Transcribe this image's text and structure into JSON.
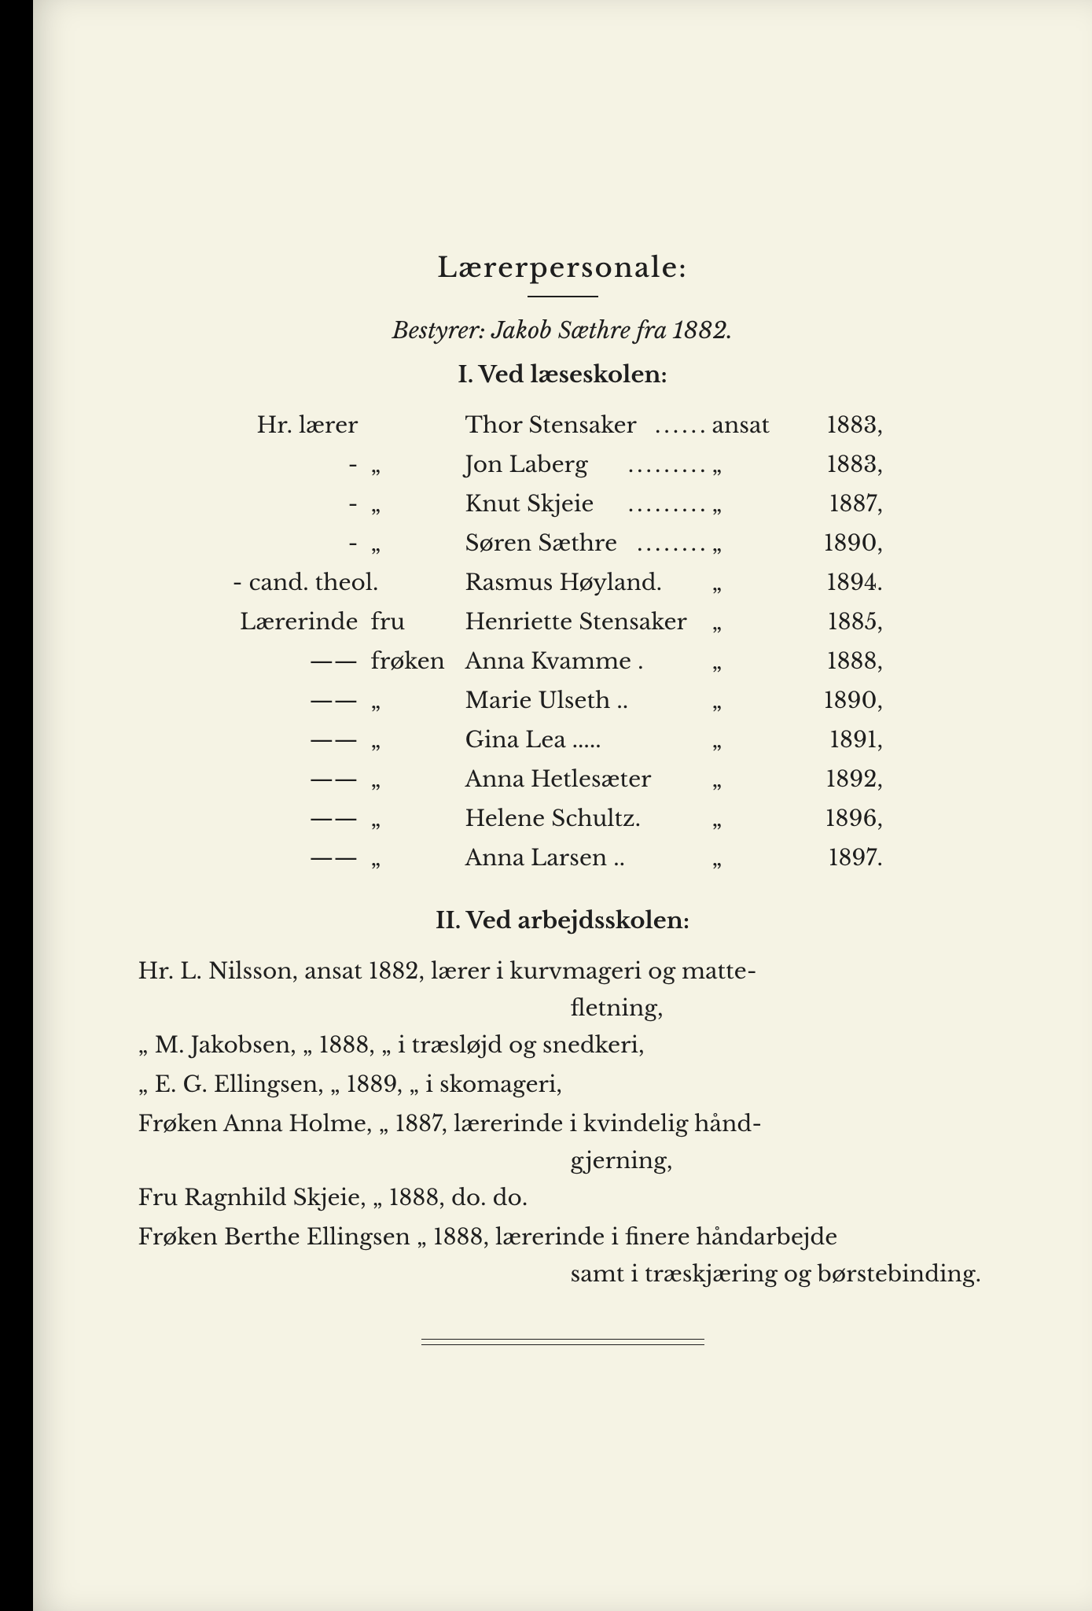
{
  "title": "Lærerpersonale:",
  "bestyrer": "Bestyrer: Jakob Sæthre fra 1882.",
  "section1": {
    "heading": "I.  Ved læseskolen:",
    "rows": [
      {
        "title": "Hr. lærer",
        "prefix": "",
        "name": "Thor Stensaker",
        "dots": "......",
        "ansat": "ansat",
        "year": "1883",
        "punct": ","
      },
      {
        "title": "-",
        "prefix": "„",
        "name": "Jon Laberg",
        "dots": ".........",
        "ansat": "„",
        "year": "1883",
        "punct": ","
      },
      {
        "title": "-",
        "prefix": "„",
        "name": "Knut Skjeie",
        "dots": ".........",
        "ansat": "„",
        "year": "1887",
        "punct": ","
      },
      {
        "title": "-",
        "prefix": "„",
        "name": "Søren Sæthre",
        "dots": "........",
        "ansat": "„",
        "year": "1890",
        "punct": ","
      },
      {
        "title": "- cand. theol.",
        "prefix": "",
        "name": "Rasmus Høyland.",
        "dots": "",
        "ansat": "„",
        "year": "1894",
        "punct": "."
      },
      {
        "title": "Lærerinde",
        "prefix": "fru",
        "name": "Henriette Stensaker",
        "dots": "",
        "ansat": "„",
        "year": "1885",
        "punct": ","
      },
      {
        "title": "——",
        "prefix": "frøken",
        "name": "Anna Kvamme .",
        "dots": "",
        "ansat": "„",
        "year": "1888",
        "punct": ","
      },
      {
        "title": "——",
        "prefix": "„",
        "name": "Marie Ulseth ..",
        "dots": "",
        "ansat": "„",
        "year": "1890",
        "punct": ","
      },
      {
        "title": "——",
        "prefix": "„",
        "name": "Gina Lea .....",
        "dots": "",
        "ansat": "„",
        "year": "1891",
        "punct": ","
      },
      {
        "title": "——",
        "prefix": "„",
        "name": "Anna Hetlesæter",
        "dots": "",
        "ansat": "„",
        "year": "1892",
        "punct": ","
      },
      {
        "title": "——",
        "prefix": "„",
        "name": "Helene Schultz.",
        "dots": "",
        "ansat": "„",
        "year": "1896",
        "punct": ","
      },
      {
        "title": "——",
        "prefix": "„",
        "name": "Anna Larsen ..",
        "dots": "",
        "ansat": "„",
        "year": "1897",
        "punct": "."
      }
    ]
  },
  "section2": {
    "heading": "II.  Ved arbejdsskolen:",
    "rows": [
      {
        "line1": "Hr. L. Nilsson,           ansat 1882, lærer i kurvmageri og matte-",
        "line2": "fletning,"
      },
      {
        "line1": " „  M. Jakobsen,            „   1888,   „    i træsløjd og snedkeri,",
        "line2": ""
      },
      {
        "line1": " „  E. G. Ellingsen,        „   1889,   „    i skomageri,",
        "line2": ""
      },
      {
        "line1": "Frøken Anna Holme,        „   1887, lærerinde i kvindelig hånd-",
        "line2": "gjerning,"
      },
      {
        "line1": "Fru Ragnhild Skjeie,      „   1888,   do.            do.",
        "line2": ""
      },
      {
        "line1": "Frøken Berthe Ellingsen  „   1888, lærerinde i finere håndarbejde",
        "line2": "samt i træskjæring og børstebinding."
      }
    ]
  }
}
